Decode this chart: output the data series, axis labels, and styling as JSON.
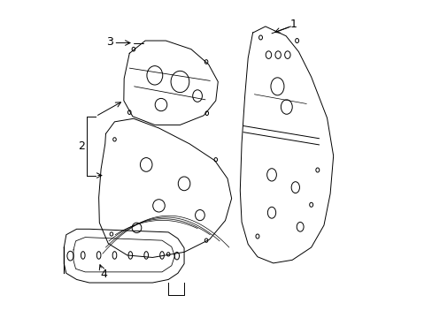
{
  "background_color": "#ffffff",
  "line_color": "#000000",
  "line_width": 0.7,
  "label_fontsize": 9,
  "figsize": [
    4.89,
    3.6
  ],
  "dpi": 100
}
